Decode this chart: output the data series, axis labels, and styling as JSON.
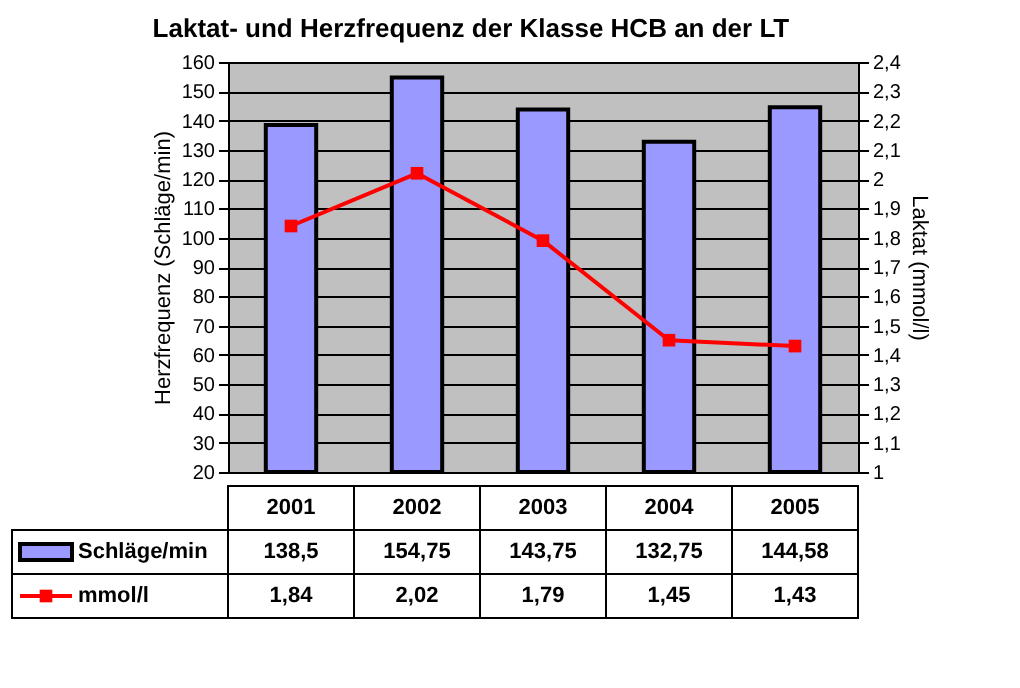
{
  "chart_data": {
    "type": "bar",
    "title": "Laktat- und Herzfrequenz der Klasse HCB an der LT",
    "ylabel": "Herzfrequenz (Schläge/min)",
    "y2label": "Laktat (mmol/l)",
    "categories": [
      "2001",
      "2002",
      "2003",
      "2004",
      "2005"
    ],
    "series": [
      {
        "name": "Schläge/min",
        "color": "#9999ff",
        "values": [
          138.5,
          154.75,
          143.75,
          132.75,
          144.58
        ],
        "value_labels": [
          "138,5",
          "154,75",
          "143,75",
          "132,75",
          "144,58"
        ]
      },
      {
        "name": "mmol/l",
        "type": "line",
        "axis": "y2",
        "color": "#ff0000",
        "values": [
          1.84,
          2.02,
          1.79,
          1.45,
          1.43
        ],
        "value_labels": [
          "1,84",
          "2,02",
          "1,79",
          "1,45",
          "1,43"
        ]
      }
    ],
    "ylim": [
      20,
      160
    ],
    "yticks": [
      20,
      30,
      40,
      50,
      60,
      70,
      80,
      90,
      100,
      110,
      120,
      130,
      140,
      150,
      160
    ],
    "y2lim": [
      1,
      2.4
    ],
    "y2ticks": [
      1,
      {
        "value": 1.1,
        "label": "1,1"
      },
      {
        "value": 1.2,
        "label": "1,2"
      },
      {
        "value": 1.3,
        "label": "1,3"
      },
      {
        "value": 1.4,
        "label": "1,4"
      },
      {
        "value": 1.5,
        "label": "1,5"
      },
      {
        "value": 1.6,
        "label": "1,6"
      },
      {
        "value": 1.7,
        "label": "1,7"
      },
      {
        "value": 1.8,
        "label": "1,8"
      },
      {
        "value": 1.9,
        "label": "1,9"
      },
      2,
      {
        "value": 2.1,
        "label": "2,1"
      },
      {
        "value": 2.2,
        "label": "2,2"
      },
      {
        "value": 2.3,
        "label": "2,3"
      },
      {
        "value": 2.4,
        "label": "2,4"
      }
    ],
    "grid": "y",
    "legend": "bottom",
    "marker": "square",
    "line_style": "solid"
  }
}
